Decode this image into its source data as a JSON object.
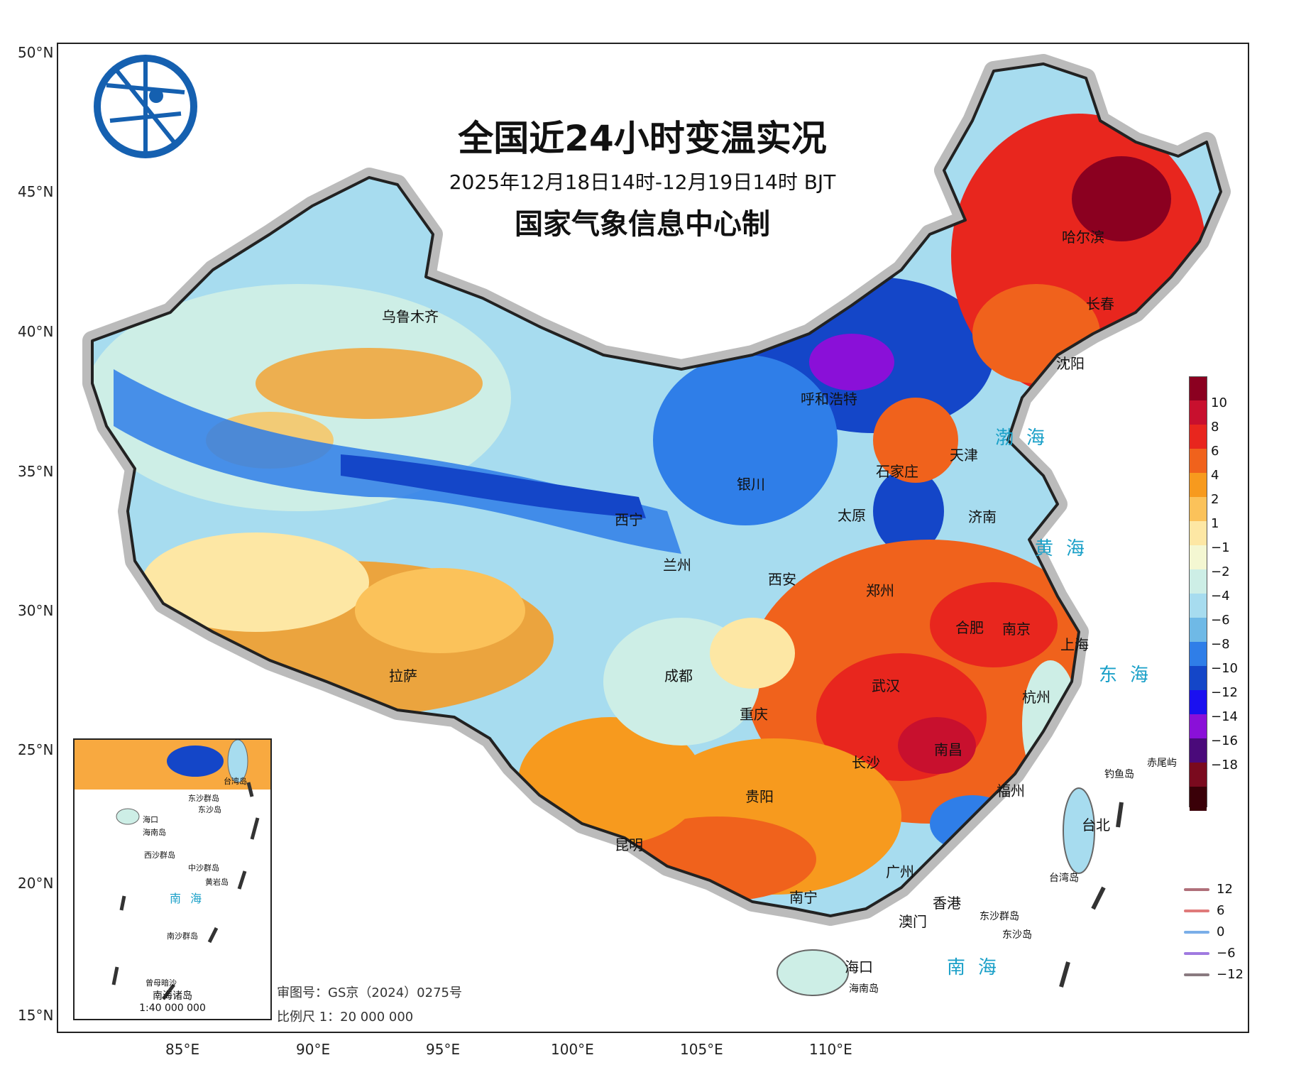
{
  "title": "全国近24小时变温实况",
  "subtitle": "2025年12月18日14时-12月19日14时 BJT",
  "producer": "国家气象信息中心制",
  "lat_labels": [
    "50°N",
    "45°N",
    "40°N",
    "35°N",
    "30°N",
    "25°N",
    "20°N",
    "15°N"
  ],
  "lon_labels": [
    "85°E",
    "90°E",
    "95°E",
    "100°E",
    "105°E",
    "110°E"
  ],
  "cities": [
    {
      "name": "乌鲁木齐"
    },
    {
      "name": "哈尔滨"
    },
    {
      "name": "长春"
    },
    {
      "name": "沈阳"
    },
    {
      "name": "呼和浩特"
    },
    {
      "name": "天津"
    },
    {
      "name": "石家庄"
    },
    {
      "name": "银川"
    },
    {
      "name": "太原"
    },
    {
      "name": "济南"
    },
    {
      "name": "西宁"
    },
    {
      "name": "兰州"
    },
    {
      "name": "西安"
    },
    {
      "name": "郑州"
    },
    {
      "name": "合肥"
    },
    {
      "name": "南京"
    },
    {
      "name": "上海"
    },
    {
      "name": "拉萨"
    },
    {
      "name": "成都"
    },
    {
      "name": "武汉"
    },
    {
      "name": "杭州"
    },
    {
      "name": "重庆"
    },
    {
      "name": "长沙"
    },
    {
      "name": "南昌"
    },
    {
      "name": "福州"
    },
    {
      "name": "贵阳"
    },
    {
      "name": "台北"
    },
    {
      "name": "昆明"
    },
    {
      "name": "广州"
    },
    {
      "name": "南宁"
    },
    {
      "name": "香港"
    },
    {
      "name": "澳门"
    },
    {
      "name": "海口"
    },
    {
      "name": "海南岛"
    },
    {
      "name": "钓鱼岛"
    },
    {
      "name": "赤尾屿"
    },
    {
      "name": "台湾岛"
    },
    {
      "name": "东沙群岛"
    },
    {
      "name": "东沙岛"
    }
  ],
  "seas": {
    "bohai": "渤海",
    "huanghai": "黄海",
    "donghai": "东海",
    "nanhai": "南海"
  },
  "legend": {
    "ticks": [
      "10",
      "8",
      "6",
      "4",
      "2",
      "1",
      "−1",
      "−2",
      "−4",
      "−6",
      "−8",
      "−10",
      "−12",
      "−14",
      "−16",
      "−18"
    ],
    "colors": [
      "#8b0020",
      "#c8102e",
      "#e8261e",
      "#f0621c",
      "#f79a1e",
      "#fbc25a",
      "#fde7a4",
      "#f4f7d2",
      "#cdeee6",
      "#a7dcef",
      "#6fb9e6",
      "#2f7ee8",
      "#1446c8",
      "#1a10f0",
      "#8a10d8",
      "#4a0a7a",
      "#7a0a1e",
      "#3a0008"
    ]
  },
  "isolines": [
    {
      "label": "12",
      "color": "#b0707a"
    },
    {
      "label": "6",
      "color": "#e07a7a"
    },
    {
      "label": "0",
      "color": "#7aaee8"
    },
    {
      "label": "−6",
      "color": "#a07ae0"
    },
    {
      "label": "−12",
      "color": "#8a7a80"
    }
  ],
  "inset": {
    "title": "南海诸岛",
    "scale": "1:40 000 000",
    "labels": [
      "海口",
      "海南岛",
      "东沙群岛",
      "东沙岛",
      "西沙群岛",
      "中沙群岛",
      "黄岩岛",
      "南沙群岛",
      "曾母暗沙",
      "台湾岛"
    ],
    "sea": "南 海"
  },
  "notes": {
    "approval": "审图号：GS京（2024）0275号",
    "scale": "比例尺 1：20 000 000"
  }
}
